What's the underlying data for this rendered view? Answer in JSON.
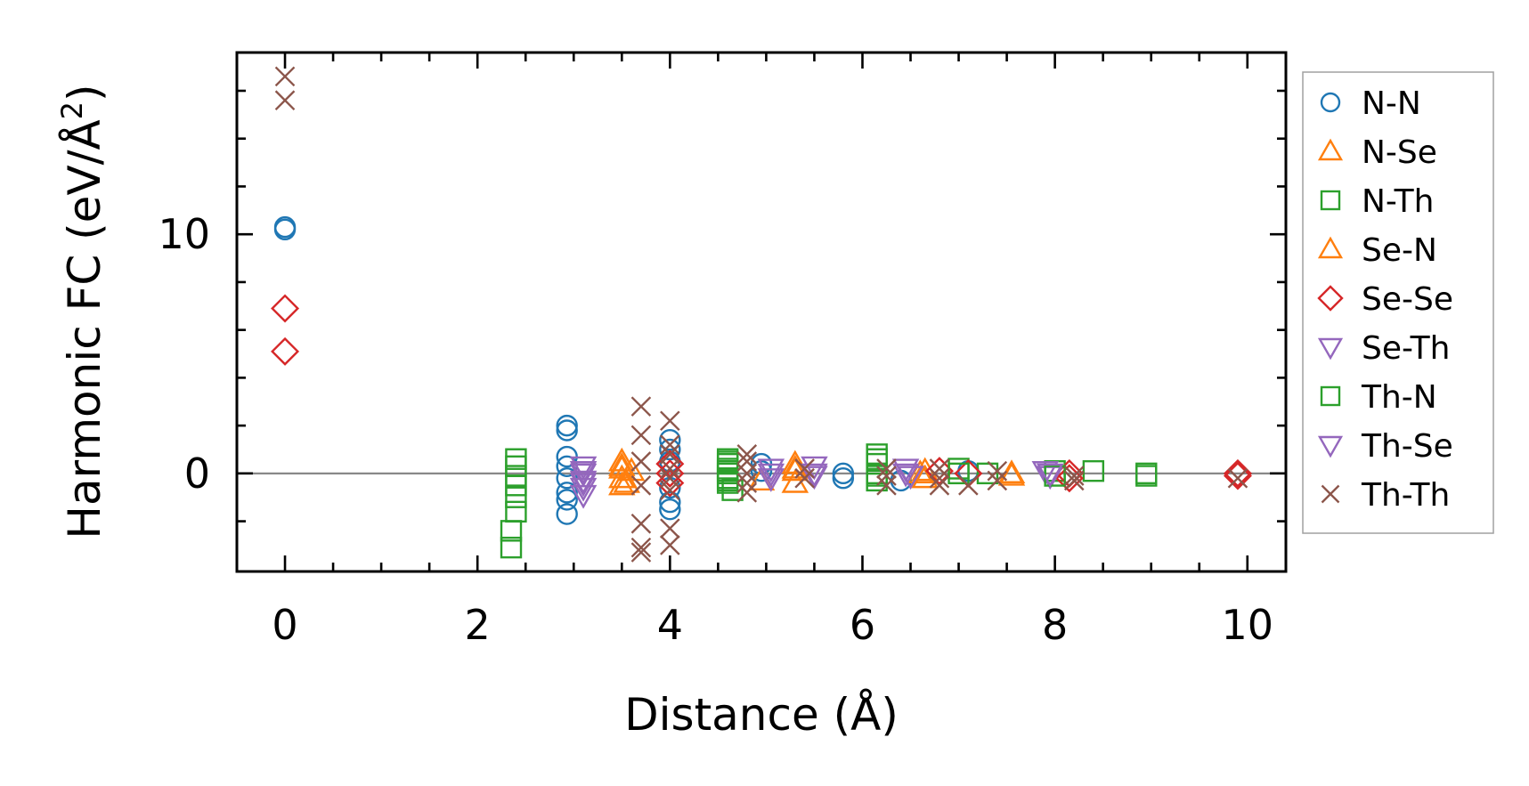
{
  "chart_data": {
    "type": "scatter",
    "title": "",
    "xlabel": "Distance (Å)",
    "ylabel_parts": [
      "Harmonic FC (eV/Å",
      "2",
      ")"
    ],
    "xlim": [
      -0.5,
      10.4
    ],
    "ylim": [
      -4.1,
      17.6
    ],
    "xticks": [
      0,
      2,
      4,
      6,
      8,
      10
    ],
    "xtick_labels": [
      "0",
      "2",
      "4",
      "6",
      "8",
      "10"
    ],
    "yticks": [
      0,
      10
    ],
    "ytick_labels": [
      "0",
      "10"
    ],
    "hline": 0,
    "legend_position": "outside-right",
    "series": [
      {
        "name": "N-N",
        "marker": "circle",
        "color": "#1f77b4",
        "filled": false,
        "points": [
          [
            0.0,
            10.3
          ],
          [
            0.0,
            10.2
          ],
          [
            2.93,
            2.0
          ],
          [
            2.93,
            1.8
          ],
          [
            2.93,
            0.7
          ],
          [
            2.93,
            0.3
          ],
          [
            2.93,
            -0.2
          ],
          [
            2.93,
            -0.8
          ],
          [
            2.93,
            -1.1
          ],
          [
            2.93,
            -1.7
          ],
          [
            4.0,
            1.4
          ],
          [
            4.0,
            1.0
          ],
          [
            4.0,
            0.5
          ],
          [
            4.0,
            -0.6
          ],
          [
            4.0,
            -1.2
          ],
          [
            4.0,
            -1.5
          ],
          [
            4.95,
            0.4
          ],
          [
            4.95,
            0.1
          ],
          [
            5.8,
            0.0
          ],
          [
            5.8,
            -0.2
          ],
          [
            6.4,
            -0.3
          ],
          [
            7.1,
            0.1
          ]
        ]
      },
      {
        "name": "N-Se",
        "marker": "triangle-up",
        "color": "#ff7f0e",
        "filled": false,
        "points": [
          [
            3.5,
            0.5
          ],
          [
            3.5,
            0.2
          ],
          [
            3.5,
            -0.2
          ],
          [
            3.5,
            -0.5
          ],
          [
            3.6,
            0.1
          ],
          [
            4.95,
            -0.3
          ],
          [
            5.3,
            0.4
          ],
          [
            5.3,
            0.1
          ],
          [
            5.3,
            -0.4
          ],
          [
            6.6,
            0.0
          ],
          [
            6.65,
            -0.2
          ],
          [
            7.55,
            -0.1
          ]
        ]
      },
      {
        "name": "N-Th",
        "marker": "square",
        "color": "#2ca02c",
        "filled": false,
        "points": [
          [
            2.35,
            -3.1
          ],
          [
            2.35,
            -2.4
          ],
          [
            2.4,
            0.6
          ],
          [
            2.4,
            0.3
          ],
          [
            2.4,
            -0.1
          ],
          [
            2.4,
            -0.5
          ],
          [
            2.4,
            -1.0
          ],
          [
            2.4,
            -1.6
          ],
          [
            4.6,
            0.6
          ],
          [
            4.6,
            0.4
          ],
          [
            4.6,
            0.2
          ],
          [
            4.6,
            0.0
          ],
          [
            4.6,
            -0.2
          ],
          [
            4.6,
            -0.4
          ],
          [
            4.65,
            -0.7
          ],
          [
            6.15,
            0.8
          ],
          [
            6.15,
            0.4
          ],
          [
            6.15,
            0.0
          ],
          [
            6.15,
            -0.3
          ],
          [
            7.0,
            0.2
          ],
          [
            7.3,
            0.0
          ],
          [
            8.0,
            0.1
          ],
          [
            8.4,
            0.1
          ],
          [
            8.95,
            0.0
          ],
          [
            8.95,
            -0.1
          ]
        ]
      },
      {
        "name": "Se-N",
        "marker": "triangle-up",
        "color": "#ff7f0e",
        "filled": false,
        "points": [
          [
            3.5,
            0.3
          ],
          [
            3.55,
            -0.4
          ],
          [
            5.3,
            0.2
          ],
          [
            6.65,
            0.1
          ],
          [
            7.55,
            0.0
          ]
        ]
      },
      {
        "name": "Se-Se",
        "marker": "diamond",
        "color": "#d62728",
        "filled": false,
        "points": [
          [
            0.0,
            6.9
          ],
          [
            0.0,
            5.1
          ],
          [
            4.0,
            0.4
          ],
          [
            4.0,
            0.0
          ],
          [
            4.0,
            -0.4
          ],
          [
            6.8,
            0.1
          ],
          [
            7.1,
            0.0
          ],
          [
            8.15,
            0.0
          ],
          [
            8.15,
            -0.2
          ],
          [
            9.9,
            0.0
          ],
          [
            9.9,
            -0.1
          ]
        ]
      },
      {
        "name": "Se-Th",
        "marker": "triangle-down",
        "color": "#9467bd",
        "filled": false,
        "points": [
          [
            3.1,
            0.3
          ],
          [
            3.1,
            0.0
          ],
          [
            3.1,
            -0.3
          ],
          [
            3.1,
            -0.6
          ],
          [
            3.1,
            -0.9
          ],
          [
            5.05,
            0.2
          ],
          [
            5.05,
            -0.2
          ],
          [
            5.5,
            0.3
          ],
          [
            5.5,
            0.0
          ],
          [
            6.45,
            0.2
          ],
          [
            6.5,
            -0.1
          ],
          [
            7.9,
            0.1
          ],
          [
            7.95,
            -0.1
          ]
        ]
      },
      {
        "name": "Th-N",
        "marker": "square",
        "color": "#2ca02c",
        "filled": false,
        "points": [
          [
            4.6,
            0.5
          ],
          [
            4.6,
            0.1
          ],
          [
            4.6,
            -0.3
          ],
          [
            6.15,
            0.6
          ],
          [
            6.15,
            -0.1
          ],
          [
            7.0,
            0.0
          ],
          [
            8.0,
            -0.1
          ]
        ]
      },
      {
        "name": "Th-Se",
        "marker": "triangle-down",
        "color": "#9467bd",
        "filled": false,
        "points": [
          [
            3.1,
            0.1
          ],
          [
            3.1,
            -0.4
          ],
          [
            5.05,
            0.0
          ],
          [
            5.5,
            -0.1
          ],
          [
            6.45,
            0.0
          ],
          [
            7.95,
            0.0
          ]
        ]
      },
      {
        "name": "Th-Th",
        "marker": "x",
        "color": "#8c564b",
        "filled": false,
        "points": [
          [
            0.0,
            16.6
          ],
          [
            0.0,
            15.6
          ],
          [
            3.7,
            2.8
          ],
          [
            3.7,
            1.6
          ],
          [
            3.7,
            0.5
          ],
          [
            3.7,
            -0.5
          ],
          [
            3.7,
            -2.1
          ],
          [
            3.7,
            -3.1
          ],
          [
            3.7,
            -3.3
          ],
          [
            4.0,
            2.2
          ],
          [
            4.0,
            1.2
          ],
          [
            4.0,
            0.8
          ],
          [
            4.0,
            0.2
          ],
          [
            4.0,
            -0.2
          ],
          [
            4.0,
            -0.7
          ],
          [
            4.0,
            -2.3
          ],
          [
            4.0,
            -3.0
          ],
          [
            4.8,
            0.8
          ],
          [
            4.8,
            0.5
          ],
          [
            4.8,
            0.0
          ],
          [
            4.8,
            -0.4
          ],
          [
            4.8,
            -0.8
          ],
          [
            5.4,
            0.2
          ],
          [
            5.4,
            -0.2
          ],
          [
            6.25,
            0.2
          ],
          [
            6.25,
            -0.1
          ],
          [
            6.25,
            -0.5
          ],
          [
            6.8,
            0.2
          ],
          [
            6.8,
            -0.2
          ],
          [
            6.8,
            -0.5
          ],
          [
            7.1,
            -0.5
          ],
          [
            7.4,
            0.1
          ],
          [
            7.4,
            -0.3
          ],
          [
            8.2,
            -0.1
          ],
          [
            8.2,
            -0.3
          ],
          [
            9.9,
            -0.2
          ]
        ]
      }
    ]
  }
}
